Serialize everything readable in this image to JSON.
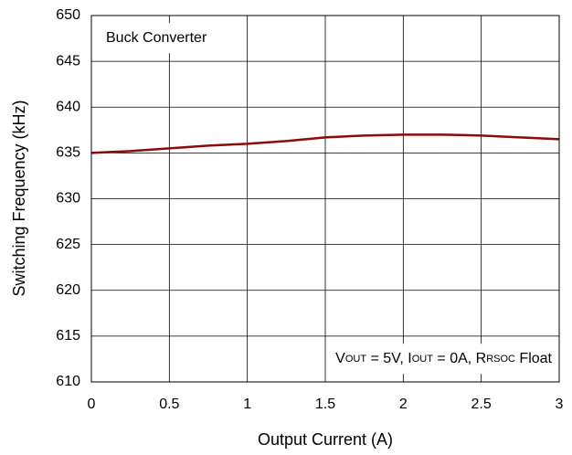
{
  "chart_data": {
    "type": "line",
    "xlabel": "Output Current (A)",
    "ylabel": "Switching Frequency (kHz)",
    "x": [
      0,
      0.25,
      0.5,
      0.75,
      1,
      1.25,
      1.5,
      1.75,
      2,
      2.25,
      2.5,
      2.75,
      3
    ],
    "series": [
      {
        "color": "#8b0a0a",
        "values": [
          635.0,
          635.2,
          635.5,
          635.8,
          636.0,
          636.3,
          636.7,
          636.9,
          637.0,
          637.0,
          636.9,
          636.7,
          636.5
        ]
      }
    ],
    "xlim": [
      0,
      3
    ],
    "xticks": [
      0,
      0.5,
      1,
      1.5,
      2,
      2.5,
      3
    ],
    "ylim": [
      610,
      650
    ],
    "yticks": [
      610,
      615,
      620,
      625,
      630,
      635,
      640,
      645,
      650
    ],
    "grid": true,
    "annotations": [
      {
        "text": "Buck Converter"
      },
      {
        "parts": [
          "V",
          "OUT",
          " = 5V, I",
          "OUT",
          " = 0A, R",
          "RSOC",
          " Float"
        ]
      }
    ]
  }
}
